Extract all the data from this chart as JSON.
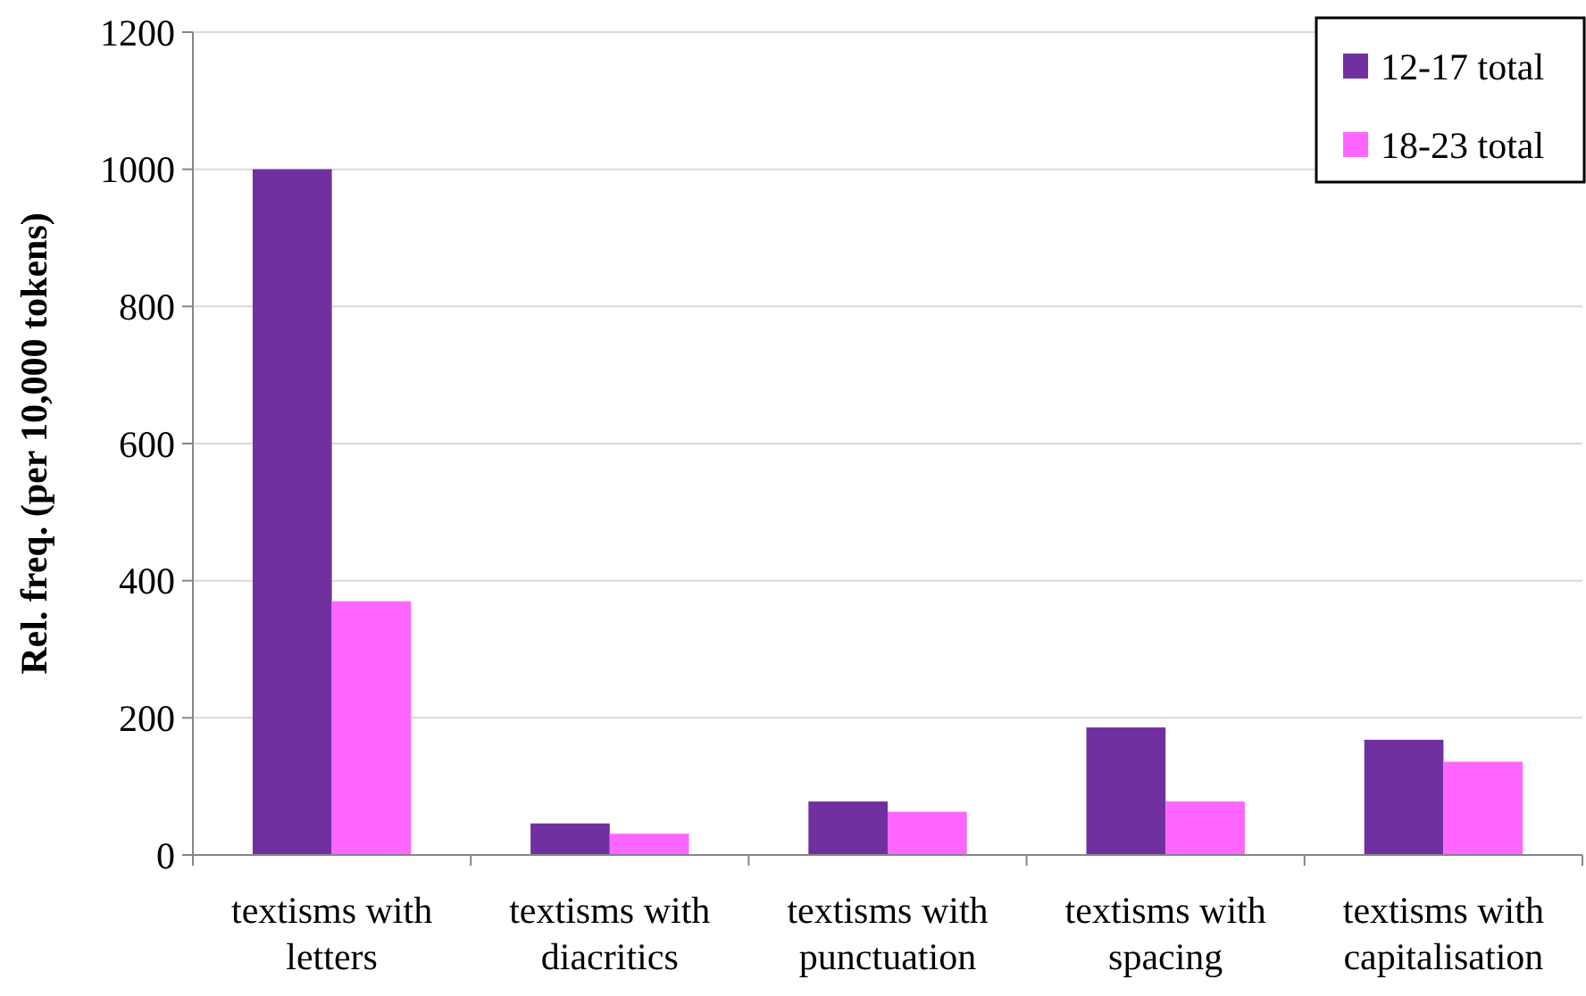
{
  "chart_data": {
    "type": "bar",
    "ylabel": "Rel. freq. (per 10,000 tokens)",
    "categories": [
      "textisms with letters",
      "textisms with diacritics",
      "textisms with punctuation",
      "textisms with spacing",
      "textisms with capitalisation"
    ],
    "series": [
      {
        "name": "12-17 total",
        "color": "#7030a0",
        "values": [
          1000,
          46,
          78,
          186,
          168
        ]
      },
      {
        "name": "18-23 total",
        "color": "#ff66ff",
        "values": [
          370,
          31,
          63,
          78,
          136
        ]
      }
    ],
    "ylim": [
      0,
      1200
    ],
    "yticks": [
      0,
      200,
      400,
      600,
      800,
      1000,
      1200
    ],
    "grid": "y",
    "legend": "top right"
  }
}
